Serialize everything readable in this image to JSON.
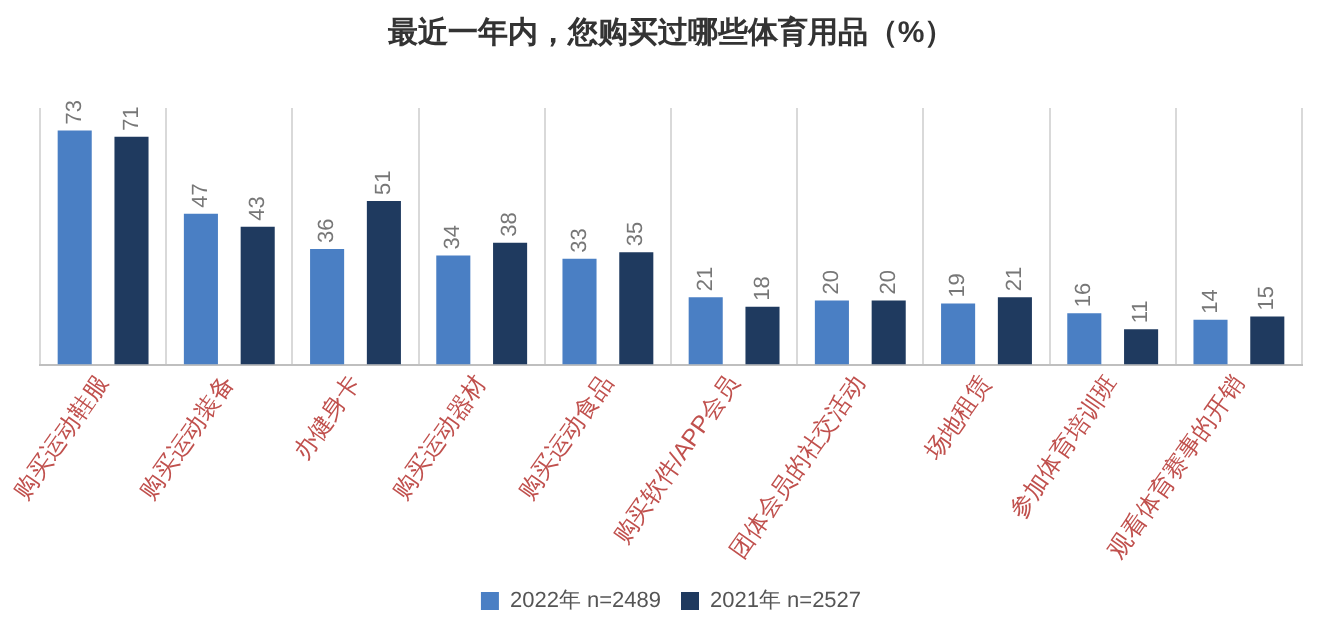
{
  "chart_data": {
    "type": "bar",
    "title": "最近一年内，您购买过哪些体育用品（%）",
    "categories": [
      "购买运动鞋服",
      "购买运动装备",
      "办健身卡",
      "购买运动器材",
      "购买运动食品",
      "购买软件/APP会员",
      "团体会员的社交活动",
      "场地租赁",
      "参加体育培训班",
      "观看体育赛事的开销"
    ],
    "series": [
      {
        "name": "2022年 n=2489",
        "color": "#4a7fc4",
        "values": [
          73,
          47,
          36,
          34,
          33,
          21,
          20,
          19,
          16,
          14
        ]
      },
      {
        "name": "2021年 n=2527",
        "color": "#1f3a5f",
        "values": [
          71,
          43,
          51,
          38,
          35,
          18,
          20,
          21,
          11,
          15
        ]
      }
    ],
    "data_labels": true,
    "grid": "x",
    "legend": "bottom"
  }
}
